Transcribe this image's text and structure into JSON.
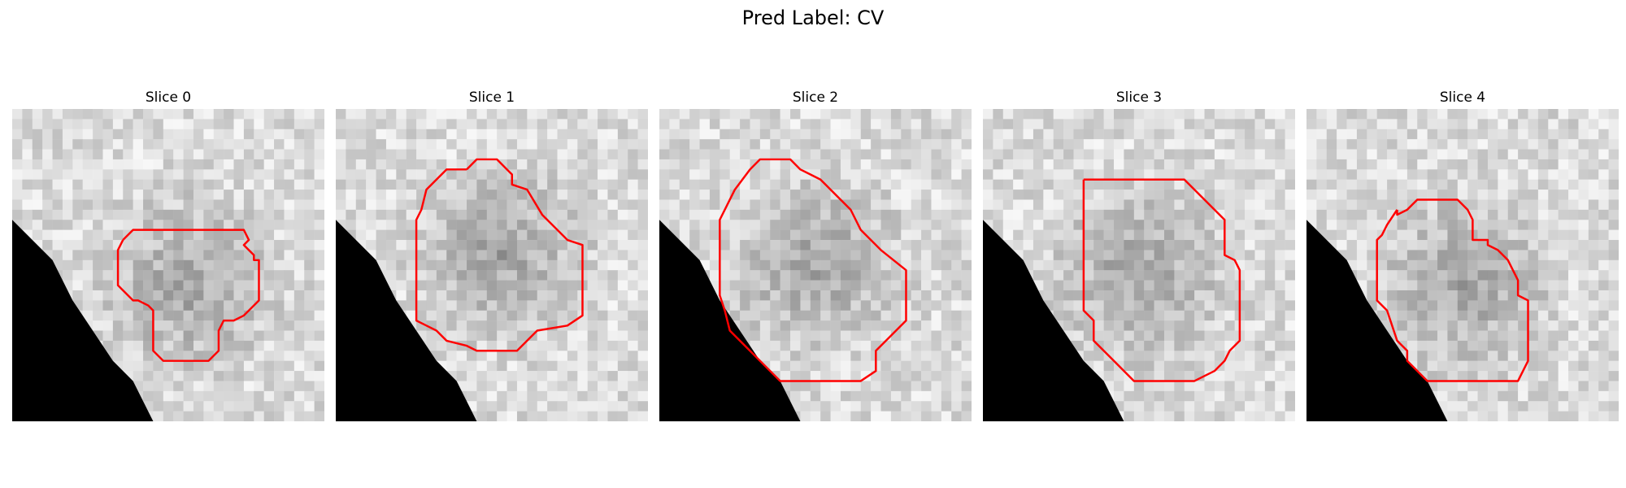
{
  "figure": {
    "suptitle": "Pred Label: CV",
    "contour_color": "#ff0000",
    "grid_size": 31
  },
  "panels": [
    {
      "title": "Slice 0",
      "mask_polygon": [
        [
          0,
          11
        ],
        [
          2,
          13
        ],
        [
          4,
          15
        ],
        [
          6,
          19
        ],
        [
          8,
          22
        ],
        [
          10,
          25
        ],
        [
          12,
          27
        ],
        [
          14,
          31
        ],
        [
          0,
          31
        ]
      ]
    },
    {
      "title": "Slice 1",
      "mask_polygon": [
        [
          0,
          11
        ],
        [
          2,
          13
        ],
        [
          4,
          15
        ],
        [
          6,
          19
        ],
        [
          8,
          22
        ],
        [
          10,
          25
        ],
        [
          12,
          27
        ],
        [
          14,
          31
        ],
        [
          0,
          31
        ]
      ]
    },
    {
      "title": "Slice 2",
      "mask_polygon": [
        [
          0,
          11
        ],
        [
          2,
          13
        ],
        [
          4,
          15
        ],
        [
          6,
          19
        ],
        [
          8,
          22
        ],
        [
          10,
          25
        ],
        [
          12,
          27
        ],
        [
          14,
          31
        ],
        [
          0,
          31
        ]
      ]
    },
    {
      "title": "Slice 3",
      "mask_polygon": [
        [
          0,
          11
        ],
        [
          2,
          13
        ],
        [
          4,
          15
        ],
        [
          6,
          19
        ],
        [
          8,
          22
        ],
        [
          10,
          25
        ],
        [
          12,
          27
        ],
        [
          14,
          31
        ],
        [
          0,
          31
        ]
      ]
    },
    {
      "title": "Slice 4",
      "mask_polygon": [
        [
          0,
          11
        ],
        [
          2,
          13
        ],
        [
          4,
          15
        ],
        [
          6,
          19
        ],
        [
          8,
          22
        ],
        [
          10,
          25
        ],
        [
          12,
          27
        ],
        [
          14,
          31
        ],
        [
          0,
          31
        ]
      ]
    }
  ]
}
